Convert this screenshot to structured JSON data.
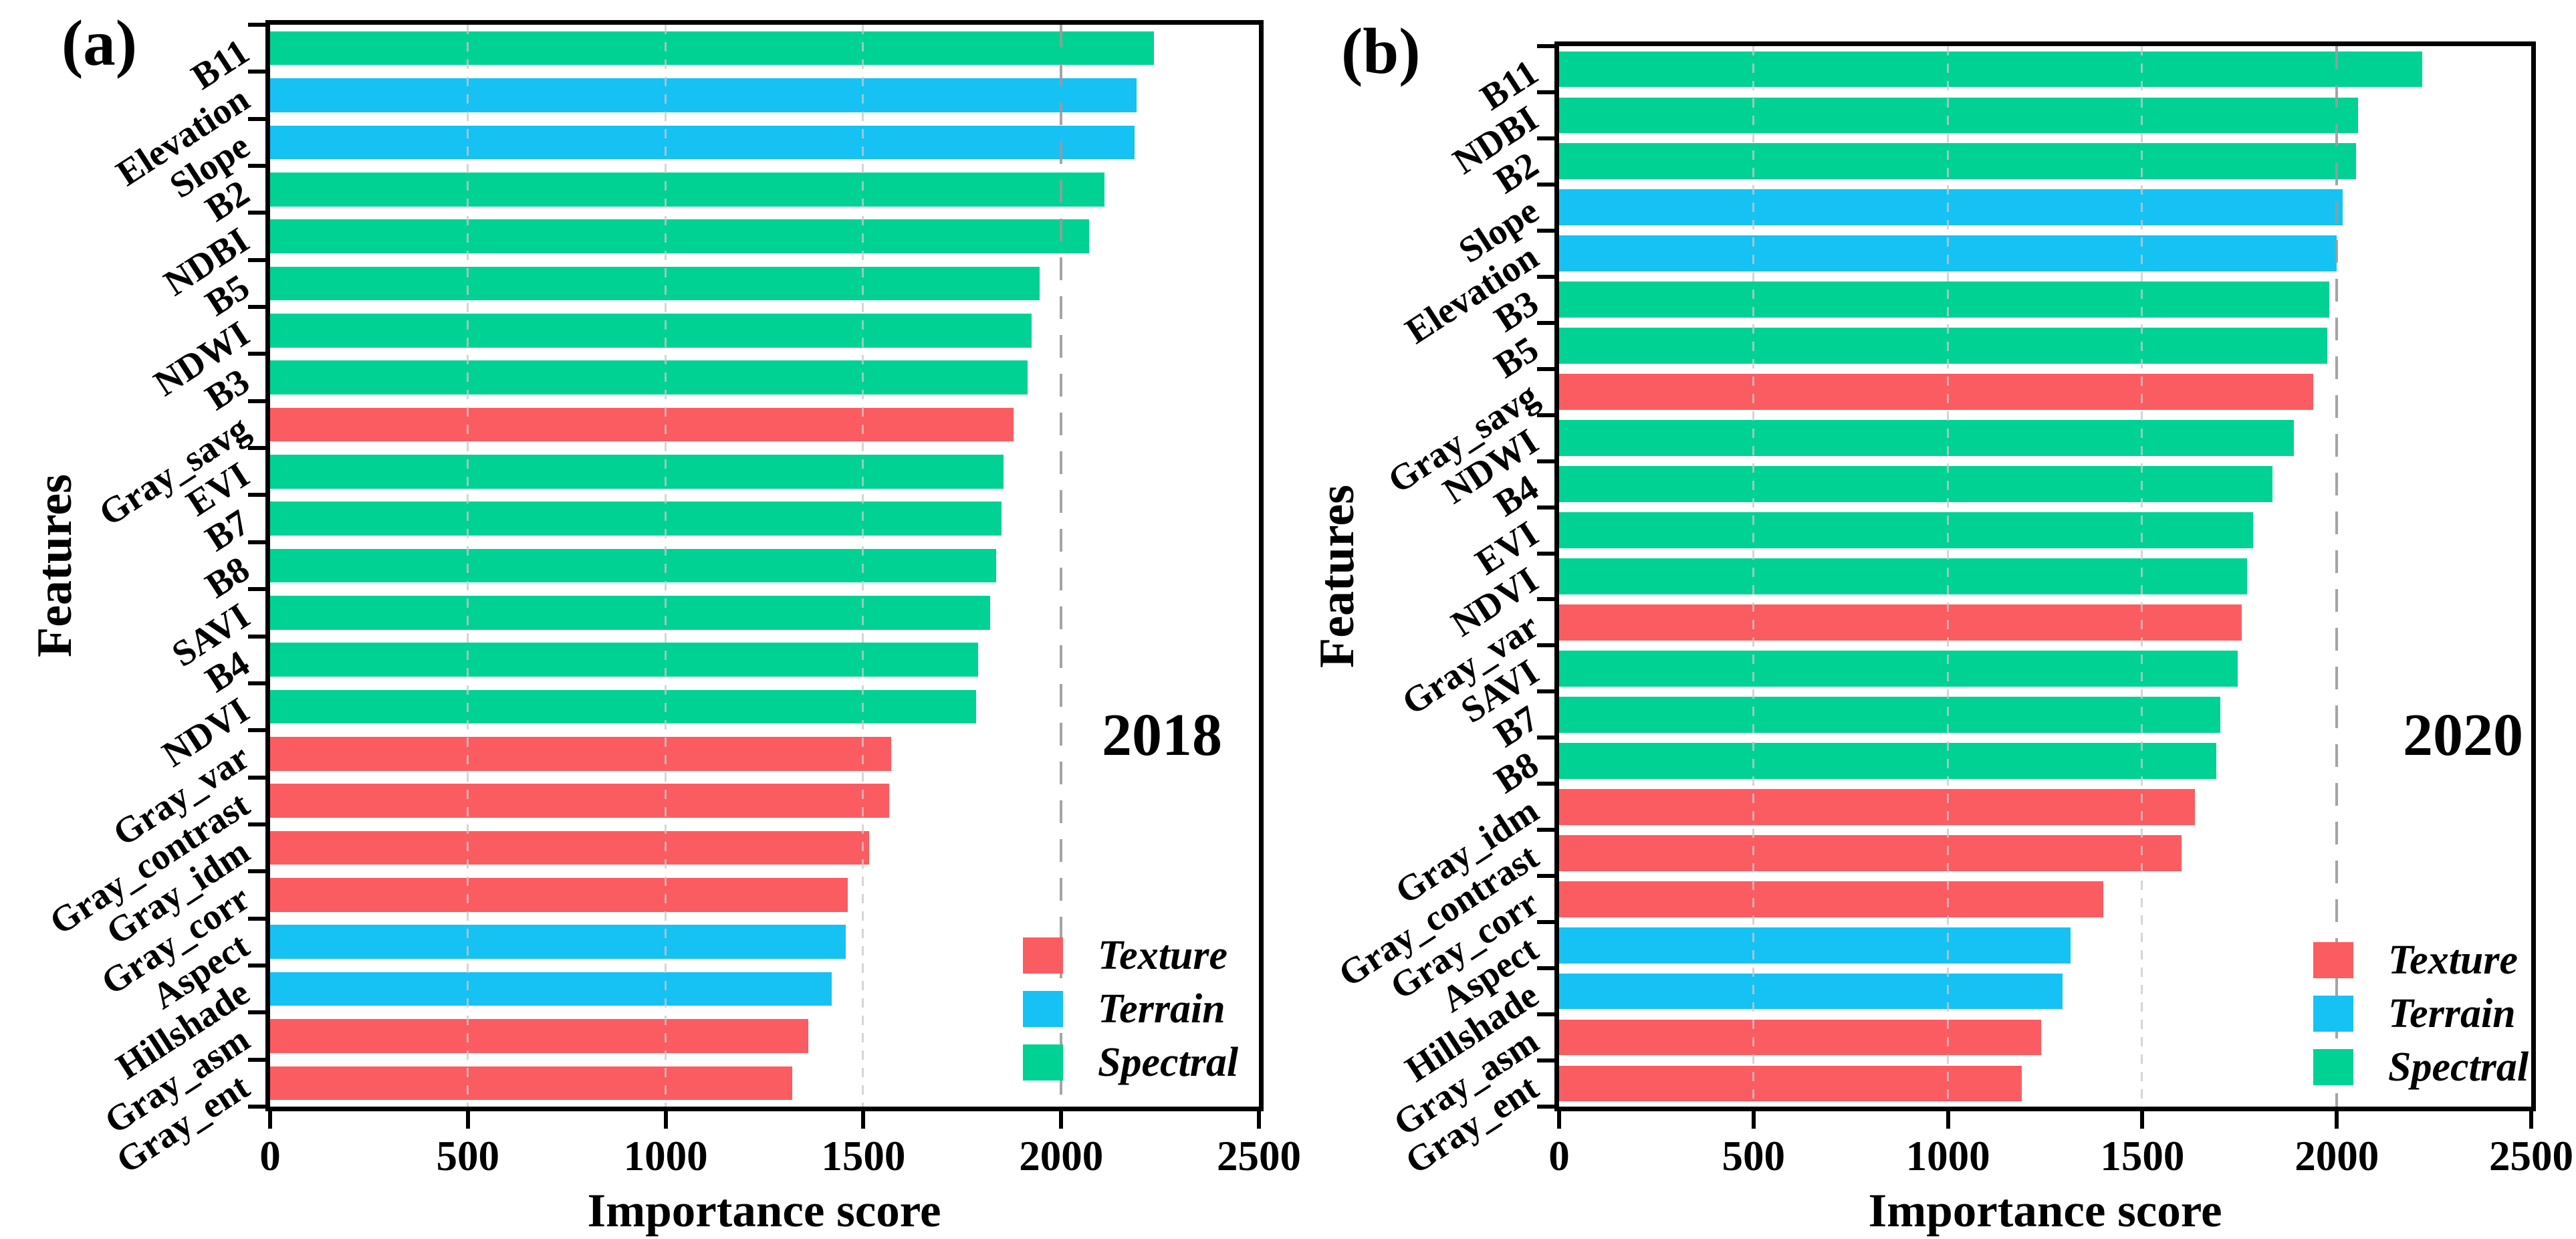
{
  "figure": {
    "background": "#ffffff"
  },
  "colors": {
    "Texture": "#FB5C61",
    "Terrain": "#16C2F3",
    "Spectral": "#00D294",
    "grid_light": "#c9c9c9",
    "grid_emphasis": "#9a9a9a",
    "axis": "#000000"
  },
  "legend": {
    "items": [
      {
        "label": "Texture",
        "category": "Texture"
      },
      {
        "label": "Terrain",
        "category": "Terrain"
      },
      {
        "label": "Spectral",
        "category": "Spectral"
      }
    ]
  },
  "chart_data": [
    {
      "type": "bar",
      "orientation": "horizontal",
      "panel_label": "(a)",
      "annotation": "2018",
      "xlabel": "Importance score",
      "ylabel": "Features",
      "xlim": [
        0,
        2500
      ],
      "x_ticks": [
        0,
        500,
        1000,
        1500,
        2000,
        2500
      ],
      "grid": "vertical dashed at 500/1000/1500 (light) and 2000 (emphasized)",
      "legend_position": "lower right",
      "categories": [
        "B11",
        "Elevation",
        "Slope",
        "B2",
        "NDBI",
        "B5",
        "NDWI",
        "B3",
        "Gray_savg",
        "EVI",
        "B7",
        "B8",
        "SAVI",
        "B4",
        "NDVI",
        "Gray_var",
        "Gray_contrast",
        "Gray_idm",
        "Gray_corr",
        "Aspect",
        "Hillshade",
        "Gray_asm",
        "Gray_ent"
      ],
      "values": [
        2235,
        2190,
        2185,
        2110,
        2070,
        1945,
        1925,
        1915,
        1880,
        1855,
        1850,
        1835,
        1820,
        1790,
        1785,
        1570,
        1565,
        1515,
        1460,
        1455,
        1420,
        1360,
        1320
      ],
      "groups": [
        "Spectral",
        "Terrain",
        "Terrain",
        "Spectral",
        "Spectral",
        "Spectral",
        "Spectral",
        "Spectral",
        "Texture",
        "Spectral",
        "Spectral",
        "Spectral",
        "Spectral",
        "Spectral",
        "Spectral",
        "Texture",
        "Texture",
        "Texture",
        "Texture",
        "Terrain",
        "Terrain",
        "Texture",
        "Texture"
      ]
    },
    {
      "type": "bar",
      "orientation": "horizontal",
      "panel_label": "(b)",
      "annotation": "2020",
      "xlabel": "Importance score",
      "ylabel": "Features",
      "xlim": [
        0,
        2500
      ],
      "x_ticks": [
        0,
        500,
        1000,
        1500,
        2000,
        2500
      ],
      "grid": "vertical dashed at 500/1000/1500 (light) and 2000 (emphasized)",
      "legend_position": "lower right",
      "categories": [
        "B11",
        "NDBI",
        "B2",
        "Slope",
        "Elevation",
        "B3",
        "B5",
        "Gray_savg",
        "NDWI",
        "B4",
        "EVI",
        "NDVI",
        "Gray_var",
        "SAVI",
        "B7",
        "B8",
        "Gray_idm",
        "Gray_contrast",
        "Gray_corr",
        "Aspect",
        "Hillshade",
        "Gray_asm",
        "Gray_ent"
      ],
      "values": [
        2220,
        2055,
        2050,
        2015,
        2000,
        1980,
        1975,
        1940,
        1890,
        1835,
        1785,
        1770,
        1755,
        1745,
        1700,
        1690,
        1635,
        1600,
        1400,
        1315,
        1295,
        1240,
        1190
      ],
      "groups": [
        "Spectral",
        "Spectral",
        "Spectral",
        "Terrain",
        "Terrain",
        "Spectral",
        "Spectral",
        "Texture",
        "Spectral",
        "Spectral",
        "Spectral",
        "Spectral",
        "Texture",
        "Spectral",
        "Spectral",
        "Spectral",
        "Texture",
        "Texture",
        "Texture",
        "Terrain",
        "Terrain",
        "Texture",
        "Texture"
      ]
    }
  ]
}
